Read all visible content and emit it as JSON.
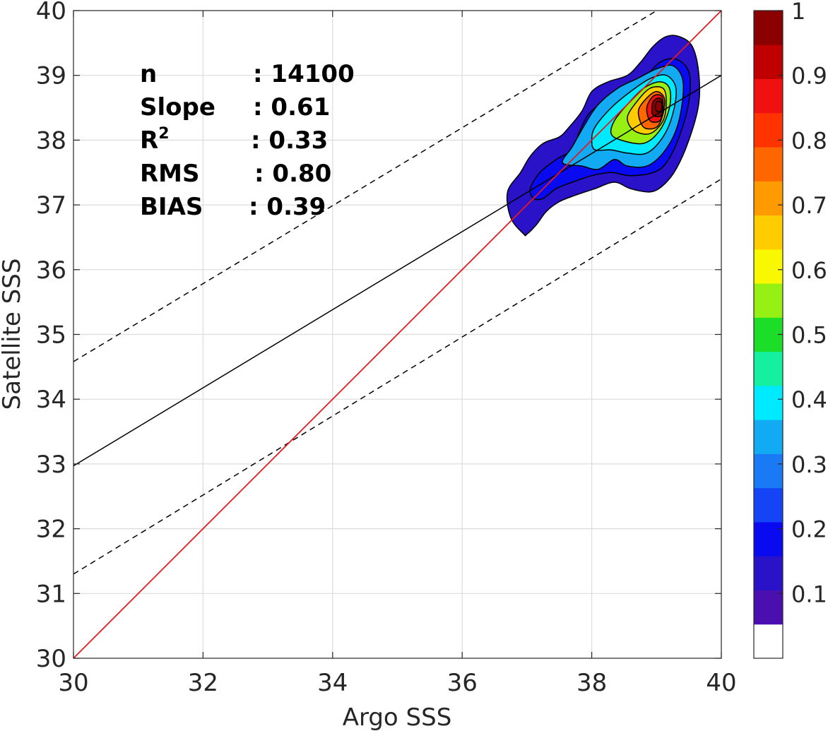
{
  "chart_data": {
    "type": "heatmap",
    "title": "",
    "xlabel": "Argo SSS",
    "ylabel": "Satellite SSS",
    "xlim": [
      30,
      40
    ],
    "ylim": [
      30,
      40
    ],
    "xticks": [
      30,
      32,
      34,
      36,
      38,
      40
    ],
    "yticks": [
      30,
      31,
      32,
      33,
      34,
      35,
      36,
      37,
      38,
      39,
      40
    ],
    "grid": true,
    "stats": [
      {
        "label": "n",
        "value": ": 14100"
      },
      {
        "label": "Slope",
        "value": ": 0.61"
      },
      {
        "label": "R",
        "sup": "2",
        "value": ": 0.33"
      },
      {
        "label": "RMS",
        "value": ": 0.80"
      },
      {
        "label": "BIAS",
        "value": ": 0.39"
      }
    ],
    "lines": {
      "one_to_one": {
        "x": [
          30,
          40
        ],
        "y": [
          30,
          40
        ],
        "color": "#e41a1c"
      },
      "fit": {
        "x": [
          30,
          40
        ],
        "y": [
          32.97,
          39.0
        ],
        "slope": 0.61,
        "color": "#000000"
      },
      "upper_bound": {
        "x": [
          30,
          40
        ],
        "y": [
          34.58,
          40.6
        ],
        "style": "dashed",
        "color": "#000000"
      },
      "lower_bound": {
        "x": [
          30,
          40
        ],
        "y": [
          31.3,
          37.4
        ],
        "style": "dashed",
        "color": "#000000"
      }
    },
    "density": {
      "levels": [
        0.05,
        0.15,
        0.25,
        0.35,
        0.45,
        0.55,
        0.65,
        0.75,
        0.85,
        0.9
      ],
      "contours": [
        {
          "level": 0.05,
          "points": [
            [
              36.95,
              36.55
            ],
            [
              36.75,
              36.8
            ],
            [
              36.7,
              37.2
            ],
            [
              36.9,
              37.5
            ],
            [
              37.05,
              37.75
            ],
            [
              37.25,
              37.95
            ],
            [
              37.5,
              38.05
            ],
            [
              37.65,
              38.2
            ],
            [
              37.85,
              38.45
            ],
            [
              38.0,
              38.75
            ],
            [
              38.25,
              38.9
            ],
            [
              38.55,
              39.0
            ],
            [
              38.75,
              39.2
            ],
            [
              38.95,
              39.45
            ],
            [
              39.15,
              39.6
            ],
            [
              39.35,
              39.6
            ],
            [
              39.55,
              39.45
            ],
            [
              39.65,
              39.05
            ],
            [
              39.65,
              38.55
            ],
            [
              39.5,
              38.0
            ],
            [
              39.3,
              37.55
            ],
            [
              39.1,
              37.3
            ],
            [
              38.9,
              37.2
            ],
            [
              38.6,
              37.25
            ],
            [
              38.35,
              37.35
            ],
            [
              38.05,
              37.25
            ],
            [
              37.75,
              37.15
            ],
            [
              37.5,
              37.05
            ],
            [
              37.3,
              36.9
            ],
            [
              37.15,
              36.7
            ],
            [
              37.0,
              36.55
            ]
          ]
        },
        {
          "level": 0.15,
          "points": [
            [
              37.1,
              37.1
            ],
            [
              37.05,
              37.25
            ],
            [
              37.2,
              37.5
            ],
            [
              37.45,
              37.7
            ],
            [
              37.7,
              37.85
            ],
            [
              37.8,
              38.1
            ],
            [
              37.95,
              38.4
            ],
            [
              38.2,
              38.6
            ],
            [
              38.5,
              38.75
            ],
            [
              38.8,
              38.95
            ],
            [
              39.05,
              39.2
            ],
            [
              39.3,
              39.25
            ],
            [
              39.5,
              39.05
            ],
            [
              39.5,
              38.6
            ],
            [
              39.35,
              38.05
            ],
            [
              39.15,
              37.65
            ],
            [
              38.95,
              37.5
            ],
            [
              38.6,
              37.45
            ],
            [
              38.3,
              37.5
            ],
            [
              38.0,
              37.45
            ],
            [
              37.7,
              37.35
            ],
            [
              37.45,
              37.25
            ],
            [
              37.25,
              37.1
            ]
          ]
        },
        {
          "level": 0.25,
          "points": [
            [
              37.55,
              37.65
            ],
            [
              37.85,
              37.6
            ],
            [
              38.1,
              37.55
            ],
            [
              38.35,
              37.7
            ],
            [
              38.55,
              37.6
            ],
            [
              38.85,
              37.6
            ],
            [
              39.1,
              37.8
            ],
            [
              39.3,
              38.15
            ],
            [
              39.4,
              38.6
            ],
            [
              39.4,
              38.95
            ],
            [
              39.25,
              39.15
            ],
            [
              39.0,
              39.1
            ],
            [
              38.7,
              38.95
            ],
            [
              38.4,
              38.8
            ],
            [
              38.1,
              38.55
            ],
            [
              37.9,
              38.25
            ],
            [
              37.7,
              37.9
            ]
          ]
        },
        {
          "level": 0.35,
          "points": [
            [
              38.05,
              37.85
            ],
            [
              38.3,
              37.85
            ],
            [
              38.55,
              37.8
            ],
            [
              38.85,
              37.8
            ],
            [
              39.1,
              38.05
            ],
            [
              39.25,
              38.4
            ],
            [
              39.3,
              38.8
            ],
            [
              39.15,
              39.0
            ],
            [
              38.9,
              38.95
            ],
            [
              38.6,
              38.75
            ],
            [
              38.3,
              38.5
            ],
            [
              38.05,
              38.2
            ],
            [
              38.0,
              38.0
            ]
          ]
        },
        {
          "level": 0.45,
          "points": [
            [
              38.45,
              38.0
            ],
            [
              38.8,
              37.95
            ],
            [
              39.05,
              38.15
            ],
            [
              39.2,
              38.5
            ],
            [
              39.2,
              38.8
            ],
            [
              39.05,
              38.9
            ],
            [
              38.8,
              38.8
            ],
            [
              38.55,
              38.55
            ],
            [
              38.35,
              38.3
            ],
            [
              38.3,
              38.1
            ]
          ]
        },
        {
          "level": 0.55,
          "points": [
            [
              38.65,
              38.15
            ],
            [
              38.9,
              38.1
            ],
            [
              39.1,
              38.3
            ],
            [
              39.15,
              38.6
            ],
            [
              39.1,
              38.8
            ],
            [
              38.9,
              38.8
            ],
            [
              38.7,
              38.6
            ],
            [
              38.55,
              38.35
            ]
          ]
        },
        {
          "level": 0.65,
          "points": [
            [
              38.8,
              38.2
            ],
            [
              39.0,
              38.2
            ],
            [
              39.1,
              38.4
            ],
            [
              39.12,
              38.65
            ],
            [
              39.0,
              38.75
            ],
            [
              38.85,
              38.65
            ],
            [
              38.72,
              38.45
            ]
          ]
        },
        {
          "level": 0.75,
          "points": [
            [
              38.9,
              38.3
            ],
            [
              39.05,
              38.3
            ],
            [
              39.1,
              38.5
            ],
            [
              39.08,
              38.68
            ],
            [
              38.95,
              38.68
            ],
            [
              38.85,
              38.5
            ]
          ]
        },
        {
          "level": 0.85,
          "points": [
            [
              38.95,
              38.38
            ],
            [
              39.07,
              38.38
            ],
            [
              39.1,
              38.55
            ],
            [
              39.05,
              38.65
            ],
            [
              38.95,
              38.6
            ],
            [
              38.93,
              38.48
            ]
          ]
        },
        {
          "level": 0.9,
          "points": [
            [
              39.0,
              38.45
            ],
            [
              39.07,
              38.45
            ],
            [
              39.08,
              38.57
            ],
            [
              39.02,
              38.6
            ],
            [
              38.98,
              38.53
            ]
          ]
        }
      ]
    },
    "colorbar": {
      "ticks": [
        "0.1",
        "0.2",
        "0.3",
        "0.4",
        "0.5",
        "0.6",
        "0.7",
        "0.8",
        "0.9",
        "1"
      ],
      "colors": [
        "#ffffff",
        "#4b0fb0",
        "#2a12c8",
        "#0a0af0",
        "#1444f5",
        "#1a7af5",
        "#12aaf2",
        "#00eaff",
        "#14f0a0",
        "#1cde28",
        "#96f014",
        "#f8f800",
        "#ffcc00",
        "#ff9a00",
        "#ff6600",
        "#ff3300",
        "#f01010",
        "#c00000",
        "#8b0000"
      ]
    }
  }
}
